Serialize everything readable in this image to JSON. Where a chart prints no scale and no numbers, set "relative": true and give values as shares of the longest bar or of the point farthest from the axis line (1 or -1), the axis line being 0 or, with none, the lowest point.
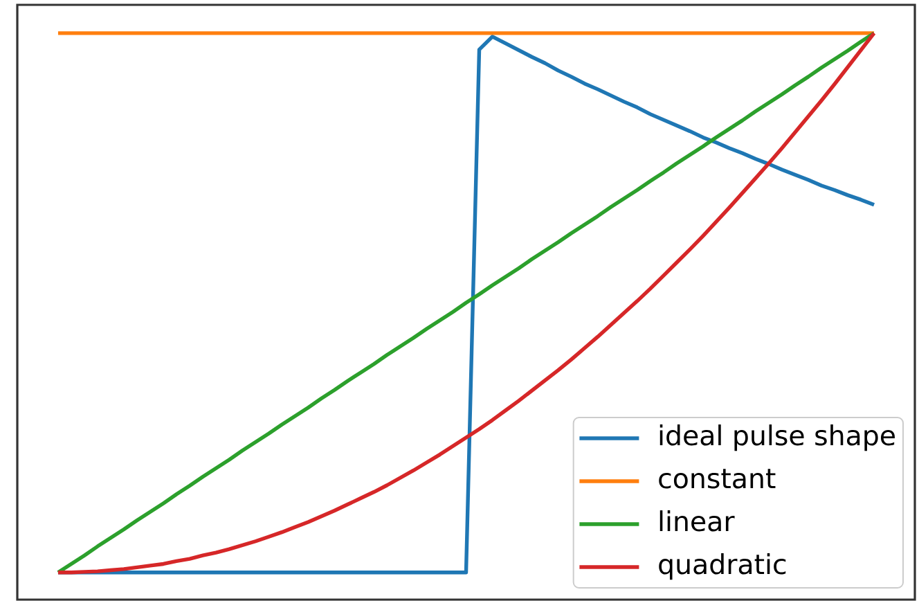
{
  "chart_data": {
    "type": "line",
    "relative": true,
    "legend": "bottom right",
    "categories": [
      null,
      null,
      null,
      null,
      null,
      null,
      null,
      null,
      null,
      null,
      null,
      null,
      null,
      null,
      null,
      null,
      null,
      null,
      null,
      null,
      null,
      null,
      null,
      null,
      null,
      null,
      null,
      null,
      null,
      null,
      null,
      null,
      null,
      null,
      null,
      null,
      null,
      null,
      null,
      null,
      null,
      null,
      null,
      null,
      null,
      null,
      null,
      null,
      null,
      null,
      null,
      null,
      null,
      null,
      null,
      null,
      null,
      null,
      null,
      null,
      null,
      null,
      null
    ],
    "series": [
      {
        "name": "ideal pulse shape",
        "color": "#1f77b4",
        "values": [
          0.048,
          0.048,
          0.048,
          0.048,
          0.048,
          0.048,
          0.048,
          0.048,
          0.048,
          0.048,
          0.048,
          0.048,
          0.048,
          0.048,
          0.048,
          0.048,
          0.048,
          0.048,
          0.048,
          0.048,
          0.048,
          0.048,
          0.048,
          0.048,
          0.048,
          0.048,
          0.048,
          0.048,
          0.048,
          0.048,
          0.048,
          0.048,
          0.971,
          0.994,
          0.982,
          0.97,
          0.958,
          0.947,
          0.934,
          0.923,
          0.911,
          0.901,
          0.89,
          0.879,
          0.869,
          0.857,
          0.847,
          0.837,
          0.827,
          0.816,
          0.807,
          0.797,
          0.788,
          0.778,
          0.769,
          0.759,
          0.75,
          0.741,
          0.731,
          0.723,
          0.714,
          0.706,
          0.697
        ]
      },
      {
        "name": "constant",
        "color": "#ff7f0e",
        "values": [
          1,
          1,
          1,
          1,
          1,
          1,
          1,
          1,
          1,
          1,
          1,
          1,
          1,
          1,
          1,
          1,
          1,
          1,
          1,
          1,
          1,
          1,
          1,
          1,
          1,
          1,
          1,
          1,
          1,
          1,
          1,
          1,
          1,
          1,
          1,
          1,
          1,
          1,
          1,
          1,
          1,
          1,
          1,
          1,
          1,
          1,
          1,
          1,
          1,
          1,
          1,
          1,
          1,
          1,
          1,
          1,
          1,
          1,
          1,
          1,
          1,
          1,
          1
        ]
      },
      {
        "name": "linear",
        "color": "#2ca02c",
        "values": [
          0.048,
          0.063,
          0.078,
          0.094,
          0.109,
          0.124,
          0.14,
          0.155,
          0.17,
          0.186,
          0.201,
          0.217,
          0.232,
          0.247,
          0.263,
          0.278,
          0.293,
          0.309,
          0.324,
          0.339,
          0.355,
          0.37,
          0.386,
          0.401,
          0.416,
          0.432,
          0.447,
          0.462,
          0.478,
          0.493,
          0.508,
          0.524,
          0.539,
          0.555,
          0.57,
          0.585,
          0.601,
          0.616,
          0.631,
          0.647,
          0.662,
          0.677,
          0.693,
          0.708,
          0.723,
          0.739,
          0.754,
          0.77,
          0.785,
          0.8,
          0.816,
          0.831,
          0.846,
          0.862,
          0.877,
          0.892,
          0.908,
          0.923,
          0.939,
          0.954,
          0.969,
          0.985,
          1
        ]
      },
      {
        "name": "quadratic",
        "color": "#d62728",
        "values": [
          0.048,
          0.048,
          0.049,
          0.05,
          0.052,
          0.054,
          0.057,
          0.06,
          0.063,
          0.068,
          0.072,
          0.078,
          0.083,
          0.089,
          0.096,
          0.103,
          0.111,
          0.119,
          0.128,
          0.137,
          0.147,
          0.157,
          0.168,
          0.179,
          0.19,
          0.202,
          0.215,
          0.228,
          0.242,
          0.256,
          0.271,
          0.286,
          0.301,
          0.317,
          0.334,
          0.351,
          0.369,
          0.387,
          0.405,
          0.424,
          0.444,
          0.464,
          0.485,
          0.506,
          0.527,
          0.549,
          0.572,
          0.595,
          0.618,
          0.642,
          0.667,
          0.692,
          0.718,
          0.744,
          0.77,
          0.797,
          0.825,
          0.853,
          0.881,
          0.91,
          0.94,
          0.97,
          1
        ]
      }
    ]
  }
}
